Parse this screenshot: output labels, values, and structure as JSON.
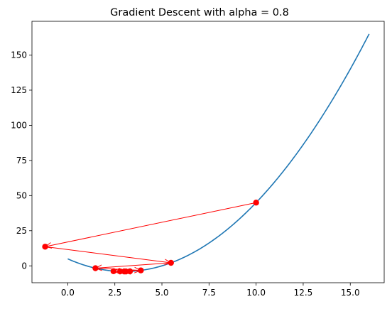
{
  "chart_data": {
    "type": "line",
    "title": "Gradient Descent with alpha = 0.8",
    "xlabel": "",
    "ylabel": "",
    "xlim": [
      -1.9,
      16.8
    ],
    "ylim": [
      -12,
      174
    ],
    "x_ticks": [
      0.0,
      2.5,
      5.0,
      7.5,
      10.0,
      12.5,
      15.0
    ],
    "x_tick_labels": [
      "0.0",
      "2.5",
      "5.0",
      "7.5",
      "10.0",
      "12.5",
      "15.0"
    ],
    "y_ticks": [
      0,
      25,
      50,
      75,
      100,
      125,
      150
    ],
    "y_tick_labels": [
      "0",
      "25",
      "50",
      "75",
      "100",
      "125",
      "150"
    ],
    "grid": false,
    "curve": {
      "color": "#1f77b4",
      "x_start": 0,
      "x_end": 16,
      "function": "x^2 - 6x + 5"
    },
    "steps": {
      "color": "#ff0000",
      "points": [
        {
          "x": 10.0,
          "y": 45.0
        },
        {
          "x": -1.2,
          "y": 13.64
        },
        {
          "x": 5.48,
          "y": 2.15
        },
        {
          "x": 1.47,
          "y": -1.66
        },
        {
          "x": 3.88,
          "y": -3.23
        },
        {
          "x": 2.43,
          "y": -3.82
        },
        {
          "x": 3.3,
          "y": -3.91
        },
        {
          "x": 2.78,
          "y": -3.95
        },
        {
          "x": 3.09,
          "y": -3.99
        },
        {
          "x": 3.0,
          "y": -4.0
        }
      ]
    }
  }
}
